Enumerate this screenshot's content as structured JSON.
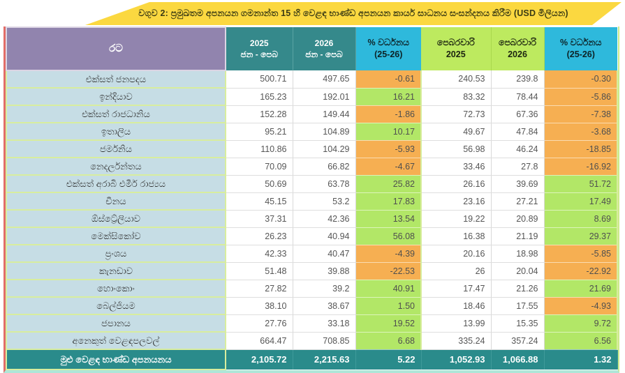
{
  "title": "වගුව 2: ප්‍රමුඛතම අපනයන ගමනාන්ත 15 හි වෙළඳ භාණ්ඩ අපනයන කාර්ය සාධනය සංසන්දනය කිරීම (USD මිලියන)",
  "colors": {
    "banner_yellow": "#FBD840",
    "header_purple": "#9184AE",
    "header_teal": "#35898B",
    "header_cyan": "#2EB9DC",
    "header_lime": "#BDEA5F",
    "country_cell_blue": "#C6DDE5",
    "positive_green": "#B2E767",
    "negative_orange": "#F6AF52",
    "total_row_teal": "#2A8B8B",
    "frame_left_red": "#E26D68",
    "row_border_green": "#D8ED9E"
  },
  "table": {
    "headers": [
      {
        "style": "country",
        "name": "header-country",
        "lines": [
          "රට"
        ]
      },
      {
        "style": "teal",
        "name": "header-2025-jan-feb",
        "lines": [
          "2025",
          "ජන - පෙබ"
        ]
      },
      {
        "style": "teal",
        "name": "header-2026-jan-feb",
        "lines": [
          "2026",
          "ජන - පෙබ"
        ]
      },
      {
        "style": "cyan",
        "name": "header-growth-cumulative",
        "lines": [
          "% වර්ධනය",
          "(25-26)"
        ]
      },
      {
        "style": "lime",
        "name": "header-feb-2025",
        "lines": [
          "පෙබරවාරි",
          "2025"
        ]
      },
      {
        "style": "lime",
        "name": "header-feb-2026",
        "lines": [
          "පෙබරවාරි",
          "2026"
        ]
      },
      {
        "style": "cyan",
        "name": "header-growth-month",
        "lines": [
          "% වර්ධනය",
          "(25-26)"
        ]
      }
    ],
    "rows": [
      {
        "country": "එක්සත් ජනපදය",
        "values": [
          "500.71",
          "497.65",
          "-0.61",
          "240.53",
          "239.8",
          "-0.30"
        ]
      },
      {
        "country": "ඉන්දියාව",
        "values": [
          "165.23",
          "192.01",
          "16.21",
          "83.32",
          "78.44",
          "-5.86"
        ]
      },
      {
        "country": "එක්සත් රාජධානිය",
        "values": [
          "152.28",
          "149.44",
          "-1.86",
          "72.73",
          "67.36",
          "-7.38"
        ]
      },
      {
        "country": "ඉතාලිය",
        "values": [
          "95.21",
          "104.89",
          "10.17",
          "49.67",
          "47.84",
          "-3.68"
        ]
      },
      {
        "country": "ජර්මනිය",
        "values": [
          "110.86",
          "104.29",
          "-5.93",
          "56.98",
          "46.24",
          "-18.85"
        ]
      },
      {
        "country": "නෙදර්ලන්තය",
        "values": [
          "70.09",
          "66.82",
          "-4.67",
          "33.46",
          "27.8",
          "-16.92"
        ]
      },
      {
        "country": "එක්සත් අරාබි එමීර් රාජ්‍යය",
        "values": [
          "50.69",
          "63.78",
          "25.82",
          "26.16",
          "39.69",
          "51.72"
        ]
      },
      {
        "country": "චීනය",
        "values": [
          "45.15",
          "53.2",
          "17.83",
          "23.16",
          "27.21",
          "17.49"
        ]
      },
      {
        "country": "ඕස්ට්‍රේලියාව",
        "values": [
          "37.31",
          "42.36",
          "13.54",
          "19.22",
          "20.89",
          "8.69"
        ]
      },
      {
        "country": "මෙක්සිකෝව",
        "values": [
          "26.23",
          "40.94",
          "56.08",
          "16.38",
          "21.19",
          "29.37"
        ]
      },
      {
        "country": "ප්‍රංශය",
        "values": [
          "42.33",
          "40.47",
          "-4.39",
          "20.16",
          "18.98",
          "-5.85"
        ]
      },
      {
        "country": "කැනඩාව",
        "values": [
          "51.48",
          "39.88",
          "-22.53",
          "26",
          "20.04",
          "-22.92"
        ]
      },
      {
        "country": "හොංකොං",
        "values": [
          "27.82",
          "39.2",
          "40.91",
          "17.47",
          "21.26",
          "21.69"
        ]
      },
      {
        "country": "බෙල්ජියම",
        "values": [
          "38.10",
          "38.67",
          "1.50",
          "18.46",
          "17.55",
          "-4.93"
        ]
      },
      {
        "country": "ජපානය",
        "values": [
          "27.76",
          "33.18",
          "19.52",
          "13.99",
          "15.35",
          "9.72"
        ]
      },
      {
        "country": "අනෙකුත් වෙළඳපලවල්",
        "values": [
          "664.47",
          "708.85",
          "6.68",
          "335.24",
          "357.24",
          "6.56"
        ]
      }
    ],
    "total": {
      "label": "මුළු වෙළඳ භාණ්ඩ අපනයනය",
      "values": [
        "2,105.72",
        "2,215.63",
        "5.22",
        "1,052.93",
        "1,066.88",
        "1.32"
      ]
    }
  },
  "chart_data": {
    "type": "table",
    "title": "වගුව 2: ප්‍රමුඛතම අපනයන ගමනාන්ත 15 හි වෙළඳ භාණ්ඩ අපනයන කාර්ය සාධනය සංසන්දනය කිරීම (USD මිලියන)",
    "columns": [
      "රට",
      "2025 ජන - පෙබ",
      "2026 ජන - පෙබ",
      "% වර්ධනය (25-26)",
      "පෙබරවාරි 2025",
      "පෙබරවාරි 2026",
      "% වර්ධනය (25-26)"
    ],
    "rows": [
      [
        "එක්සත් ජනපදය",
        500.71,
        497.65,
        -0.61,
        240.53,
        239.8,
        -0.3
      ],
      [
        "ඉන්දියාව",
        165.23,
        192.01,
        16.21,
        83.32,
        78.44,
        -5.86
      ],
      [
        "එක්සත් රාජධානිය",
        152.28,
        149.44,
        -1.86,
        72.73,
        67.36,
        -7.38
      ],
      [
        "ඉතාලිය",
        95.21,
        104.89,
        10.17,
        49.67,
        47.84,
        -3.68
      ],
      [
        "ජර්මනිය",
        110.86,
        104.29,
        -5.93,
        56.98,
        46.24,
        -18.85
      ],
      [
        "නෙදර්ලන්තය",
        70.09,
        66.82,
        -4.67,
        33.46,
        27.8,
        -16.92
      ],
      [
        "එක්සත් අරාබි එමීර් රාජ්‍යය",
        50.69,
        63.78,
        25.82,
        26.16,
        39.69,
        51.72
      ],
      [
        "චීනය",
        45.15,
        53.2,
        17.83,
        23.16,
        27.21,
        17.49
      ],
      [
        "ඕස්ට්‍රේලියාව",
        37.31,
        42.36,
        13.54,
        19.22,
        20.89,
        8.69
      ],
      [
        "මෙක්සිකෝව",
        26.23,
        40.94,
        56.08,
        16.38,
        21.19,
        29.37
      ],
      [
        "ප්‍රංශය",
        42.33,
        40.47,
        -4.39,
        20.16,
        18.98,
        -5.85
      ],
      [
        "කැනඩාව",
        51.48,
        39.88,
        -22.53,
        26,
        20.04,
        -22.92
      ],
      [
        "හොංකොං",
        27.82,
        39.2,
        40.91,
        17.47,
        21.26,
        21.69
      ],
      [
        "බෙල්ජියම",
        38.1,
        38.67,
        1.5,
        18.46,
        17.55,
        -4.93
      ],
      [
        "ජපානය",
        27.76,
        33.18,
        19.52,
        13.99,
        15.35,
        9.72
      ],
      [
        "අනෙකුත් වෙළඳපලවල්",
        664.47,
        708.85,
        6.68,
        335.24,
        357.24,
        6.56
      ],
      [
        "මුළු වෙළඳ භාණ්ඩ අපනයනය",
        2105.72,
        2215.63,
        5.22,
        1052.93,
        1066.88,
        1.32
      ]
    ]
  }
}
